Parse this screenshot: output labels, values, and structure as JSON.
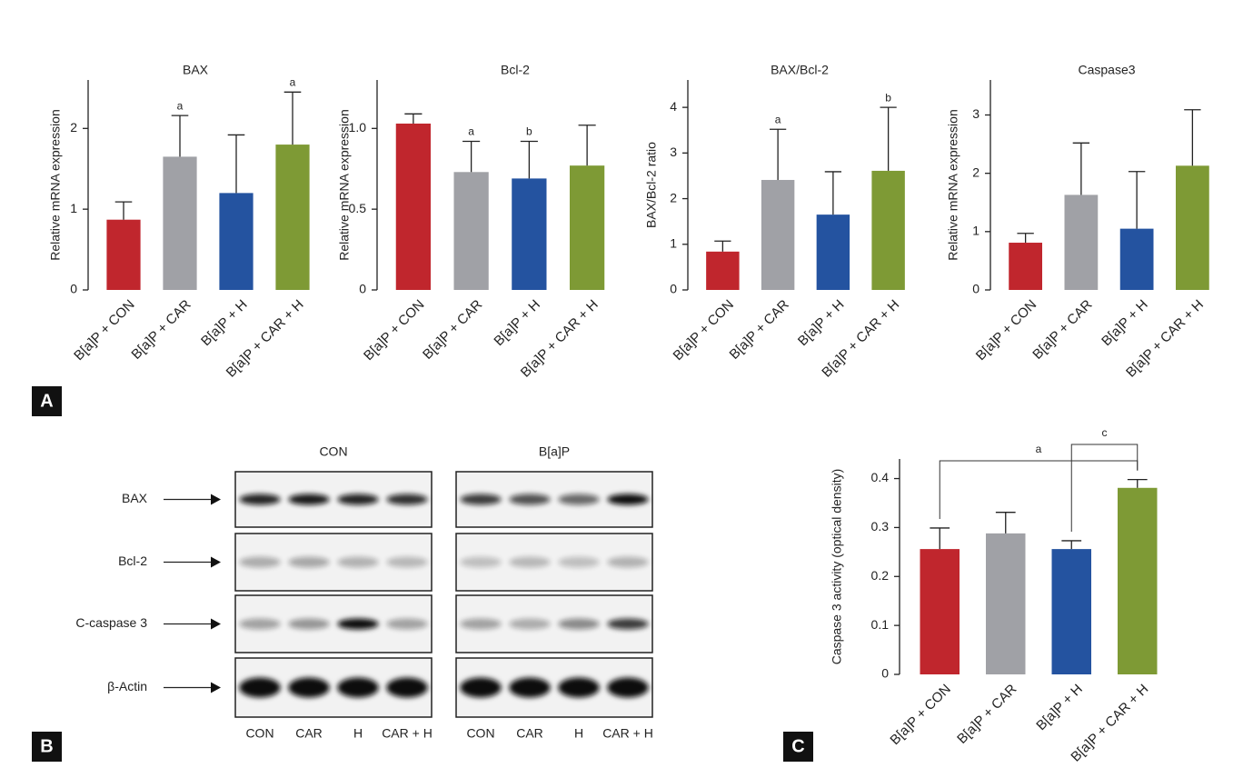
{
  "panels": [
    "A",
    "B",
    "C"
  ],
  "chart_data": [
    {
      "type": "bar",
      "title": "BAX",
      "ylabel": "Relative mRNA expression",
      "categories": [
        "B[a]P + CON",
        "B[a]P + CAR",
        "B[a]P + H",
        "B[a]P + CAR + H"
      ],
      "colors": [
        "#c0262d",
        "#a0a1a6",
        "#2453a0",
        "#7e9a35"
      ],
      "values": [
        0.87,
        1.65,
        1.2,
        1.8
      ],
      "errors": [
        0.22,
        0.51,
        0.72,
        0.65
      ],
      "annotations": [
        null,
        "a",
        null,
        "a"
      ],
      "ylim": [
        0,
        2.6
      ],
      "yticks": [
        0,
        1,
        2
      ]
    },
    {
      "type": "bar",
      "title": "Bcl-2",
      "ylabel": "Relative mRNA expression",
      "categories": [
        "B[a]P + CON",
        "B[a]P + CAR",
        "B[a]P + H",
        "B[a]P + CAR + H"
      ],
      "colors": [
        "#c0262d",
        "#a0a1a6",
        "#2453a0",
        "#7e9a35"
      ],
      "values": [
        1.03,
        0.73,
        0.69,
        0.77
      ],
      "errors": [
        0.06,
        0.19,
        0.23,
        0.25
      ],
      "annotations": [
        null,
        "a",
        "b",
        null
      ],
      "ylim": [
        0,
        1.3
      ],
      "yticks": [
        0,
        0.5,
        {
          "value": 1,
          "label": "1.0"
        }
      ]
    },
    {
      "type": "bar",
      "title": "BAX/Bcl-2",
      "ylabel": "BAX/Bcl-2 ratio",
      "categories": [
        "B[a]P + CON",
        "B[a]P + CAR",
        "B[a]P + H",
        "B[a]P + CAR + H"
      ],
      "colors": [
        "#c0262d",
        "#a0a1a6",
        "#2453a0",
        "#7e9a35"
      ],
      "values": [
        0.84,
        2.41,
        1.65,
        2.61
      ],
      "errors": [
        0.23,
        1.11,
        0.94,
        1.39
      ],
      "annotations": [
        null,
        "a",
        null,
        "b"
      ],
      "ylim": [
        0,
        4.6
      ],
      "yticks": [
        0,
        1,
        2,
        3,
        4
      ]
    },
    {
      "type": "bar",
      "title": "Caspase3",
      "ylabel": "Relative mRNA expression",
      "categories": [
        "B[a]P + CON",
        "B[a]P + CAR",
        "B[a]P + H",
        "B[a]P + CAR + H"
      ],
      "colors": [
        "#c0262d",
        "#a0a1a6",
        "#2453a0",
        "#7e9a35"
      ],
      "values": [
        0.81,
        1.63,
        1.05,
        2.13
      ],
      "errors": [
        0.16,
        0.89,
        0.98,
        0.96
      ],
      "ylim": [
        0,
        3.6
      ],
      "yticks": [
        0,
        1,
        2,
        3
      ]
    },
    {
      "type": "bar",
      "ylabel": "Caspase 3 activity (optical density)",
      "categories": [
        "B[a]P + CON",
        "B[a]P + CAR",
        "B[a]P + H",
        "B[a]P + CAR + H"
      ],
      "colors": [
        "#c0262d",
        "#a0a1a6",
        "#2453a0",
        "#7e9a35"
      ],
      "values": [
        0.256,
        0.288,
        0.256,
        0.381
      ],
      "errors": [
        0.043,
        0.043,
        0.017,
        0.017
      ],
      "comparisons": [
        {
          "between": [
            "B[a]P + CON",
            "B[a]P + CAR + H"
          ],
          "label": "a"
        },
        {
          "between": [
            "B[a]P + H",
            "B[a]P + CAR + H"
          ],
          "label": "c"
        }
      ],
      "ylim": [
        0,
        0.44
      ],
      "yticks": [
        0,
        0.1,
        0.2,
        0.3,
        0.4
      ]
    }
  ],
  "blot": {
    "rows": [
      "BAX",
      "Bcl-2",
      "C-caspase 3",
      "β-Actin"
    ],
    "groups": [
      {
        "name": "CON",
        "lanes": [
          "CON",
          "CAR",
          "H",
          "CAR + H"
        ]
      },
      {
        "name": "B[a]P",
        "lanes": [
          "CON",
          "CAR",
          "H",
          "CAR + H"
        ]
      }
    ]
  }
}
